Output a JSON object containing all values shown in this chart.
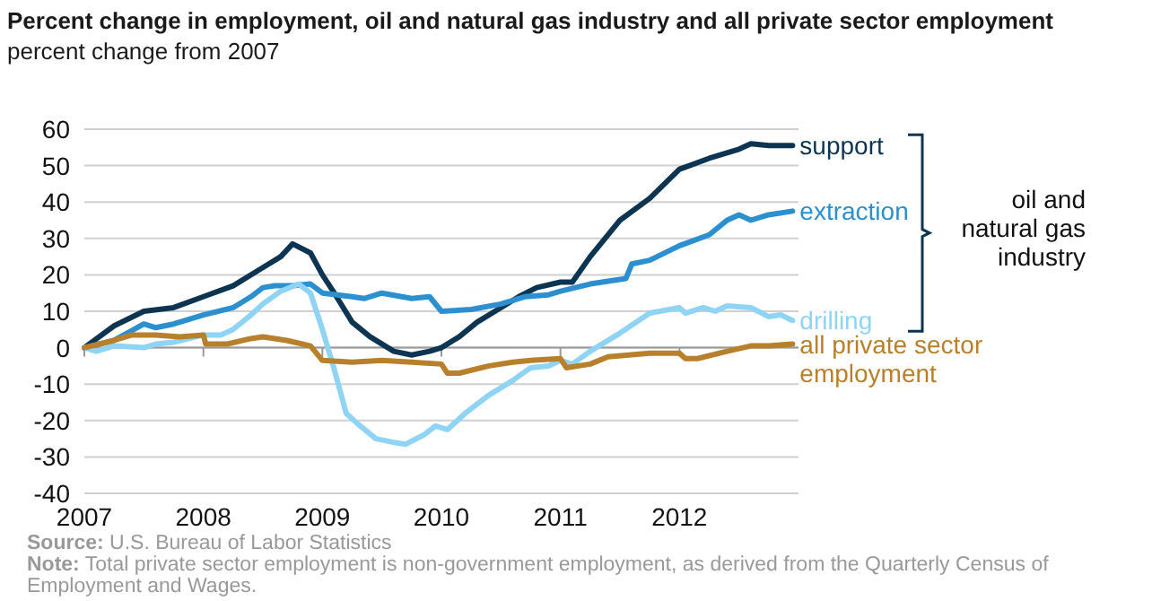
{
  "chart_data": {
    "type": "line",
    "title": "Percent change in employment, oil and natural gas industry and all private sector employment",
    "ylabel": "percent change  from 2007",
    "xlim": [
      2007,
      2013
    ],
    "xticks": [
      2007,
      2008,
      2009,
      2010,
      2011,
      2012
    ],
    "ylim": [
      -40,
      60
    ],
    "yticks": [
      -40,
      -30,
      -20,
      -10,
      0,
      10,
      20,
      30,
      40,
      50,
      60
    ],
    "grid": "y",
    "annotations": [
      "oil and natural gas industry",
      "Source: U.S. Bureau of Labor Statistics",
      "Note: Total private sector employment is non-government employment, as derived from the Quarterly Census of Employment and Wages."
    ],
    "series": [
      {
        "name": "support",
        "color": "#0d3552",
        "x": [
          2007,
          2007.25,
          2007.5,
          2007.75,
          2008,
          2008.25,
          2008.5,
          2008.65,
          2008.75,
          2008.9,
          2009,
          2009.1,
          2009.25,
          2009.4,
          2009.6,
          2009.75,
          2009.9,
          2010,
          2010.15,
          2010.3,
          2010.5,
          2010.65,
          2010.8,
          2011,
          2011.1,
          2011.25,
          2011.5,
          2011.75,
          2012,
          2012.25,
          2012.5,
          2012.6,
          2012.75,
          2012.95
        ],
        "values": [
          0,
          6,
          10,
          11,
          14,
          17,
          22,
          25,
          28.5,
          26,
          20,
          15,
          7,
          3,
          -1,
          -2,
          -1,
          0,
          3,
          7,
          11,
          14,
          16.5,
          18,
          18,
          25,
          35,
          41,
          49,
          52,
          54.5,
          56,
          55.5,
          55.5
        ]
      },
      {
        "name": "extraction",
        "color": "#2b8fd0",
        "x": [
          2007,
          2007.25,
          2007.5,
          2007.6,
          2007.75,
          2008,
          2008.25,
          2008.4,
          2008.5,
          2008.6,
          2008.75,
          2008.9,
          2009,
          2009.25,
          2009.35,
          2009.5,
          2009.75,
          2009.9,
          2010,
          2010.25,
          2010.5,
          2010.7,
          2010.9,
          2011,
          2011.25,
          2011.55,
          2011.6,
          2011.75,
          2012,
          2012.25,
          2012.4,
          2012.5,
          2012.6,
          2012.75,
          2012.95
        ],
        "values": [
          0,
          2,
          6.5,
          5.5,
          6.5,
          9,
          11,
          14,
          16.5,
          17,
          17,
          17.5,
          15,
          14,
          13.5,
          15,
          13.5,
          14,
          10,
          10.5,
          12,
          14,
          14.5,
          15.5,
          17.5,
          19,
          23,
          24,
          28,
          31,
          35,
          36.5,
          35,
          36.5,
          37.5
        ]
      },
      {
        "name": "drilling",
        "color": "#8fd3f5",
        "x": [
          2007,
          2007.1,
          2007.25,
          2007.5,
          2007.6,
          2007.75,
          2008,
          2008.15,
          2008.25,
          2008.4,
          2008.5,
          2008.65,
          2008.8,
          2008.9,
          2009,
          2009.1,
          2009.2,
          2009.3,
          2009.45,
          2009.6,
          2009.7,
          2009.85,
          2009.95,
          2010.05,
          2010.2,
          2010.4,
          2010.6,
          2010.75,
          2010.9,
          2011,
          2011.1,
          2011.25,
          2011.5,
          2011.75,
          2012,
          2012.05,
          2012.2,
          2012.3,
          2012.4,
          2012.6,
          2012.75,
          2012.85,
          2012.95
        ],
        "values": [
          0,
          -1,
          0.5,
          0,
          1,
          1.5,
          3.5,
          3.5,
          5,
          9,
          12,
          15.5,
          17.5,
          15,
          5,
          -6,
          -18,
          -21,
          -25,
          -26,
          -26.5,
          -24,
          -21.5,
          -22.5,
          -18,
          -13,
          -9,
          -5.5,
          -5,
          -3.5,
          -4.5,
          -1,
          4,
          9.5,
          11,
          9.5,
          11,
          10,
          11.5,
          11,
          8.5,
          9,
          7.5
        ]
      },
      {
        "name": "all private sector employment",
        "color": "#b8802a",
        "x": [
          2007,
          2007.25,
          2007.4,
          2007.6,
          2007.8,
          2008,
          2008.02,
          2008.2,
          2008.4,
          2008.5,
          2008.7,
          2008.9,
          2009,
          2009.25,
          2009.5,
          2009.75,
          2010,
          2010.05,
          2010.15,
          2010.4,
          2010.6,
          2010.75,
          2011,
          2011.05,
          2011.25,
          2011.4,
          2011.75,
          2012,
          2012.05,
          2012.15,
          2012.4,
          2012.6,
          2012.75,
          2012.95
        ],
        "values": [
          0,
          2,
          3.5,
          3.5,
          3,
          3.5,
          1,
          1,
          2.5,
          3,
          2,
          0.5,
          -3.5,
          -4,
          -3.5,
          -4,
          -4.5,
          -7,
          -7,
          -5,
          -4,
          -3.5,
          -3,
          -5.5,
          -4.5,
          -2.5,
          -1.5,
          -1.5,
          -3,
          -3,
          -1,
          0.5,
          0.5,
          1
        ]
      }
    ]
  }
}
